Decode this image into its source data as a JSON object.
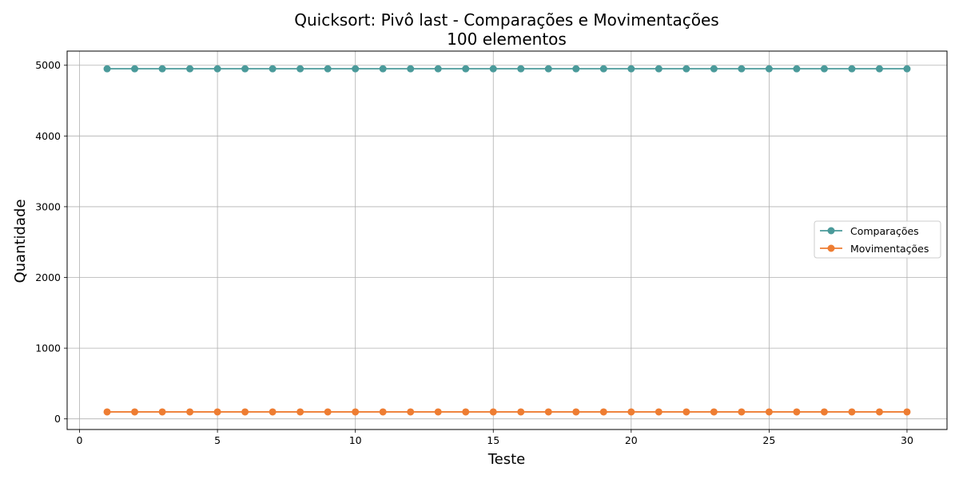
{
  "chart_data": {
    "type": "line",
    "title_line1": "Quicksort: Pivô last - Comparações e Movimentações",
    "title_line2": "100 elementos",
    "xlabel": "Teste",
    "ylabel": "Quantidade",
    "xlim": [
      -0.45,
      31.45
    ],
    "ylim": [
      -150,
      5200
    ],
    "xticks": [
      0,
      5,
      10,
      15,
      20,
      25,
      30
    ],
    "yticks": [
      0,
      1000,
      2000,
      3000,
      4000,
      5000
    ],
    "grid": true,
    "legend_position": "center-right",
    "x": [
      1,
      2,
      3,
      4,
      5,
      6,
      7,
      8,
      9,
      10,
      11,
      12,
      13,
      14,
      15,
      16,
      17,
      18,
      19,
      20,
      21,
      22,
      23,
      24,
      25,
      26,
      27,
      28,
      29,
      30
    ],
    "series": [
      {
        "name": "Comparações",
        "color": "#4a9a9a",
        "marker": "circle",
        "values": [
          4950,
          4950,
          4950,
          4950,
          4950,
          4950,
          4950,
          4950,
          4950,
          4950,
          4950,
          4950,
          4950,
          4950,
          4950,
          4950,
          4950,
          4950,
          4950,
          4950,
          4950,
          4950,
          4950,
          4950,
          4950,
          4950,
          4950,
          4950,
          4950,
          4950
        ]
      },
      {
        "name": "Movimentações",
        "color": "#ee7d32",
        "marker": "circle",
        "values": [
          99,
          99,
          99,
          99,
          99,
          99,
          99,
          99,
          99,
          99,
          99,
          99,
          99,
          99,
          99,
          99,
          99,
          99,
          99,
          99,
          99,
          99,
          99,
          99,
          99,
          99,
          99,
          99,
          99,
          99
        ]
      }
    ]
  }
}
